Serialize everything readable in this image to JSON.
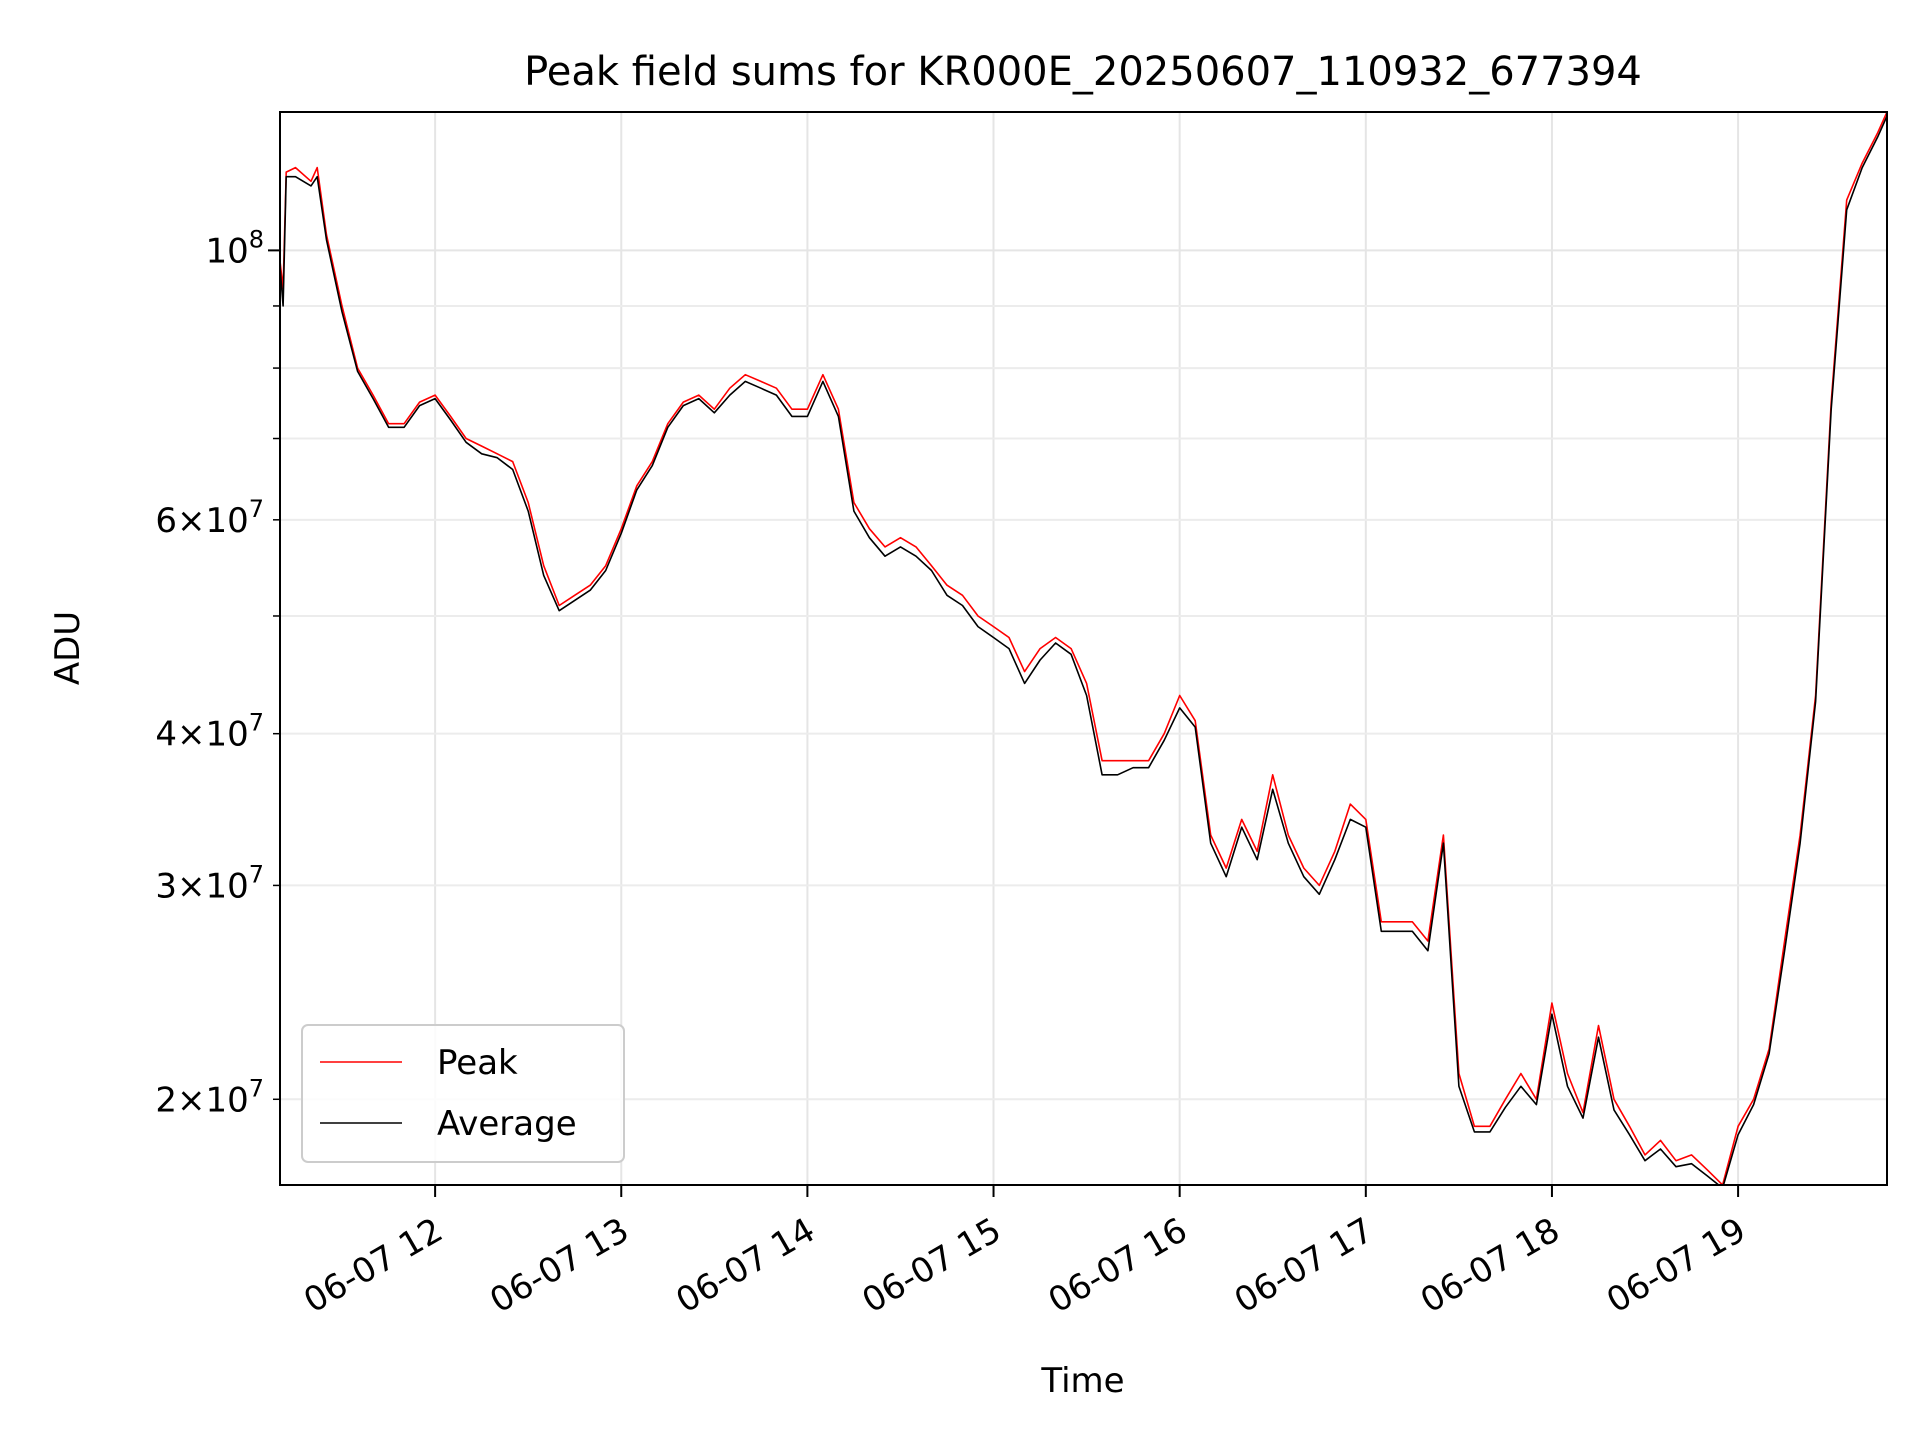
{
  "chart_data": {
    "type": "line",
    "title": "Peak field sums for KR000E_20250607_110932_677394",
    "xlabel": "Time",
    "ylabel": "ADU",
    "y_scale": "log",
    "ylim": [
      17000000,
      130000000
    ],
    "xlim": [
      "2025-06-07 11:10",
      "2025-06-07 19:48"
    ],
    "x_ticks": [
      {
        "label": "06-07 12",
        "value": "2025-06-07 12:00"
      },
      {
        "label": "06-07 13",
        "value": "2025-06-07 13:00"
      },
      {
        "label": "06-07 14",
        "value": "2025-06-07 14:00"
      },
      {
        "label": "06-07 15",
        "value": "2025-06-07 15:00"
      },
      {
        "label": "06-07 16",
        "value": "2025-06-07 16:00"
      },
      {
        "label": "06-07 17",
        "value": "2025-06-07 17:00"
      },
      {
        "label": "06-07 18",
        "value": "2025-06-07 18:00"
      },
      {
        "label": "06-07 19",
        "value": "2025-06-07 19:00"
      }
    ],
    "y_major_ticks": [
      {
        "label_base": "10",
        "label_exp": "8",
        "value": 100000000
      }
    ],
    "y_minor_ticks": [
      {
        "label_coef": "2",
        "label_base": "10",
        "label_exp": "7",
        "value": 20000000
      },
      {
        "label_coef": "3",
        "label_base": "10",
        "label_exp": "7",
        "value": 30000000
      },
      {
        "label_coef": "4",
        "label_base": "10",
        "label_exp": "7",
        "value": 40000000
      },
      {
        "label_coef": "",
        "label_base": "",
        "label_exp": "",
        "value": 50000000
      },
      {
        "label_coef": "6",
        "label_base": "10",
        "label_exp": "7",
        "value": 60000000
      },
      {
        "label_coef": "",
        "label_base": "",
        "label_exp": "",
        "value": 70000000
      },
      {
        "label_coef": "",
        "label_base": "",
        "label_exp": "",
        "value": 80000000
      },
      {
        "label_coef": "",
        "label_base": "",
        "label_exp": "",
        "value": 90000000
      }
    ],
    "grid": true,
    "legend_position": "lower-left",
    "series": [
      {
        "name": "Peak",
        "color": "#ff0000",
        "x": [
          "2025-06-07 11:10",
          "2025-06-07 11:11",
          "2025-06-07 11:12",
          "2025-06-07 11:15",
          "2025-06-07 11:20",
          "2025-06-07 11:22",
          "2025-06-07 11:25",
          "2025-06-07 11:30",
          "2025-06-07 11:35",
          "2025-06-07 11:40",
          "2025-06-07 11:45",
          "2025-06-07 11:50",
          "2025-06-07 11:55",
          "2025-06-07 12:00",
          "2025-06-07 12:05",
          "2025-06-07 12:10",
          "2025-06-07 12:15",
          "2025-06-07 12:20",
          "2025-06-07 12:25",
          "2025-06-07 12:30",
          "2025-06-07 12:35",
          "2025-06-07 12:40",
          "2025-06-07 12:45",
          "2025-06-07 12:50",
          "2025-06-07 12:55",
          "2025-06-07 13:00",
          "2025-06-07 13:05",
          "2025-06-07 13:10",
          "2025-06-07 13:15",
          "2025-06-07 13:20",
          "2025-06-07 13:25",
          "2025-06-07 13:30",
          "2025-06-07 13:35",
          "2025-06-07 13:40",
          "2025-06-07 13:45",
          "2025-06-07 13:50",
          "2025-06-07 13:55",
          "2025-06-07 14:00",
          "2025-06-07 14:05",
          "2025-06-07 14:10",
          "2025-06-07 14:15",
          "2025-06-07 14:20",
          "2025-06-07 14:25",
          "2025-06-07 14:30",
          "2025-06-07 14:35",
          "2025-06-07 14:40",
          "2025-06-07 14:45",
          "2025-06-07 14:50",
          "2025-06-07 14:55",
          "2025-06-07 15:00",
          "2025-06-07 15:05",
          "2025-06-07 15:10",
          "2025-06-07 15:15",
          "2025-06-07 15:20",
          "2025-06-07 15:25",
          "2025-06-07 15:30",
          "2025-06-07 15:35",
          "2025-06-07 15:40",
          "2025-06-07 15:45",
          "2025-06-07 15:50",
          "2025-06-07 15:55",
          "2025-06-07 16:00",
          "2025-06-07 16:05",
          "2025-06-07 16:10",
          "2025-06-07 16:15",
          "2025-06-07 16:20",
          "2025-06-07 16:25",
          "2025-06-07 16:30",
          "2025-06-07 16:35",
          "2025-06-07 16:40",
          "2025-06-07 16:45",
          "2025-06-07 16:50",
          "2025-06-07 16:55",
          "2025-06-07 17:00",
          "2025-06-07 17:05",
          "2025-06-07 17:10",
          "2025-06-07 17:15",
          "2025-06-07 17:20",
          "2025-06-07 17:25",
          "2025-06-07 17:30",
          "2025-06-07 17:35",
          "2025-06-07 17:40",
          "2025-06-07 17:45",
          "2025-06-07 17:50",
          "2025-06-07 17:55",
          "2025-06-07 18:00",
          "2025-06-07 18:05",
          "2025-06-07 18:10",
          "2025-06-07 18:15",
          "2025-06-07 18:20",
          "2025-06-07 18:25",
          "2025-06-07 18:30",
          "2025-06-07 18:35",
          "2025-06-07 18:40",
          "2025-06-07 18:45",
          "2025-06-07 18:50",
          "2025-06-07 18:55",
          "2025-06-07 19:00",
          "2025-06-07 19:05",
          "2025-06-07 19:10",
          "2025-06-07 19:15",
          "2025-06-07 19:20",
          "2025-06-07 19:25",
          "2025-06-07 19:30",
          "2025-06-07 19:35",
          "2025-06-07 19:40",
          "2025-06-07 19:45",
          "2025-06-07 19:48"
        ],
        "values": [
          98000000,
          93000000,
          116000000,
          117000000,
          114000000,
          117000000,
          103000000,
          90000000,
          80000000,
          76000000,
          72000000,
          72000000,
          75000000,
          76000000,
          73000000,
          70000000,
          69000000,
          68000000,
          67000000,
          62000000,
          55000000,
          51000000,
          52000000,
          53000000,
          55000000,
          59000000,
          64000000,
          67000000,
          72000000,
          75000000,
          76000000,
          74000000,
          77000000,
          79000000,
          78000000,
          77000000,
          74000000,
          74000000,
          79000000,
          74000000,
          62000000,
          59000000,
          57000000,
          58000000,
          57000000,
          55000000,
          53000000,
          52000000,
          50000000,
          49000000,
          48000000,
          45000000,
          47000000,
          48000000,
          47000000,
          44000000,
          38000000,
          38000000,
          38000000,
          38000000,
          40000000,
          43000000,
          41000000,
          33000000,
          31000000,
          34000000,
          32000000,
          37000000,
          33000000,
          31000000,
          30000000,
          32000000,
          35000000,
          34000000,
          28000000,
          28000000,
          28000000,
          27000000,
          33000000,
          21000000,
          19000000,
          19000000,
          20000000,
          21000000,
          20000000,
          24000000,
          21000000,
          19500000,
          23000000,
          20000000,
          19000000,
          18000000,
          18500000,
          17800000,
          18000000,
          17500000,
          17000000,
          19000000,
          20000000,
          22000000,
          27000000,
          33000000,
          43000000,
          75000000,
          110000000,
          118000000,
          125000000,
          130000000
        ]
      },
      {
        "name": "Average",
        "color": "#000000",
        "x": [
          "2025-06-07 11:10",
          "2025-06-07 11:11",
          "2025-06-07 11:12",
          "2025-06-07 11:15",
          "2025-06-07 11:20",
          "2025-06-07 11:22",
          "2025-06-07 11:25",
          "2025-06-07 11:30",
          "2025-06-07 11:35",
          "2025-06-07 11:40",
          "2025-06-07 11:45",
          "2025-06-07 11:50",
          "2025-06-07 11:55",
          "2025-06-07 12:00",
          "2025-06-07 12:05",
          "2025-06-07 12:10",
          "2025-06-07 12:15",
          "2025-06-07 12:20",
          "2025-06-07 12:25",
          "2025-06-07 12:30",
          "2025-06-07 12:35",
          "2025-06-07 12:40",
          "2025-06-07 12:45",
          "2025-06-07 12:50",
          "2025-06-07 12:55",
          "2025-06-07 13:00",
          "2025-06-07 13:05",
          "2025-06-07 13:10",
          "2025-06-07 13:15",
          "2025-06-07 13:20",
          "2025-06-07 13:25",
          "2025-06-07 13:30",
          "2025-06-07 13:35",
          "2025-06-07 13:40",
          "2025-06-07 13:45",
          "2025-06-07 13:50",
          "2025-06-07 13:55",
          "2025-06-07 14:00",
          "2025-06-07 14:05",
          "2025-06-07 14:10",
          "2025-06-07 14:15",
          "2025-06-07 14:20",
          "2025-06-07 14:25",
          "2025-06-07 14:30",
          "2025-06-07 14:35",
          "2025-06-07 14:40",
          "2025-06-07 14:45",
          "2025-06-07 14:50",
          "2025-06-07 14:55",
          "2025-06-07 15:00",
          "2025-06-07 15:05",
          "2025-06-07 15:10",
          "2025-06-07 15:15",
          "2025-06-07 15:20",
          "2025-06-07 15:25",
          "2025-06-07 15:30",
          "2025-06-07 15:35",
          "2025-06-07 15:40",
          "2025-06-07 15:45",
          "2025-06-07 15:50",
          "2025-06-07 15:55",
          "2025-06-07 16:00",
          "2025-06-07 16:05",
          "2025-06-07 16:10",
          "2025-06-07 16:15",
          "2025-06-07 16:20",
          "2025-06-07 16:25",
          "2025-06-07 16:30",
          "2025-06-07 16:35",
          "2025-06-07 16:40",
          "2025-06-07 16:45",
          "2025-06-07 16:50",
          "2025-06-07 16:55",
          "2025-06-07 17:00",
          "2025-06-07 17:05",
          "2025-06-07 17:10",
          "2025-06-07 17:15",
          "2025-06-07 17:20",
          "2025-06-07 17:25",
          "2025-06-07 17:30",
          "2025-06-07 17:35",
          "2025-06-07 17:40",
          "2025-06-07 17:45",
          "2025-06-07 17:50",
          "2025-06-07 17:55",
          "2025-06-07 18:00",
          "2025-06-07 18:05",
          "2025-06-07 18:10",
          "2025-06-07 18:15",
          "2025-06-07 18:20",
          "2025-06-07 18:25",
          "2025-06-07 18:30",
          "2025-06-07 18:35",
          "2025-06-07 18:40",
          "2025-06-07 18:45",
          "2025-06-07 18:50",
          "2025-06-07 18:55",
          "2025-06-07 19:00",
          "2025-06-07 19:05",
          "2025-06-07 19:10",
          "2025-06-07 19:15",
          "2025-06-07 19:20",
          "2025-06-07 19:25",
          "2025-06-07 19:30",
          "2025-06-07 19:35",
          "2025-06-07 19:40",
          "2025-06-07 19:45",
          "2025-06-07 19:48"
        ],
        "values": [
          97000000,
          90000000,
          115000000,
          115000000,
          113000000,
          115000000,
          102000000,
          89000000,
          79500000,
          75500000,
          71500000,
          71500000,
          74500000,
          75500000,
          72500000,
          69500000,
          68000000,
          67500000,
          66000000,
          61000000,
          54000000,
          50500000,
          51500000,
          52500000,
          54500000,
          58500000,
          63500000,
          66500000,
          71500000,
          74500000,
          75500000,
          73500000,
          76000000,
          78000000,
          77000000,
          76000000,
          73000000,
          73000000,
          78000000,
          73000000,
          61000000,
          58000000,
          56000000,
          57000000,
          56000000,
          54500000,
          52000000,
          51000000,
          49000000,
          48000000,
          47000000,
          44000000,
          46000000,
          47500000,
          46500000,
          43000000,
          37000000,
          37000000,
          37500000,
          37500000,
          39500000,
          42000000,
          40500000,
          32500000,
          30500000,
          33500000,
          31500000,
          36000000,
          32500000,
          30500000,
          29500000,
          31500000,
          34000000,
          33500000,
          27500000,
          27500000,
          27500000,
          26500000,
          32500000,
          20500000,
          18800000,
          18800000,
          19700000,
          20500000,
          19800000,
          23500000,
          20500000,
          19300000,
          22500000,
          19600000,
          18700000,
          17800000,
          18200000,
          17600000,
          17700000,
          17300000,
          16900000,
          18700000,
          19800000,
          21800000,
          26500000,
          32500000,
          42500000,
          74000000,
          108000000,
          117000000,
          124000000,
          129000000
        ]
      }
    ]
  }
}
